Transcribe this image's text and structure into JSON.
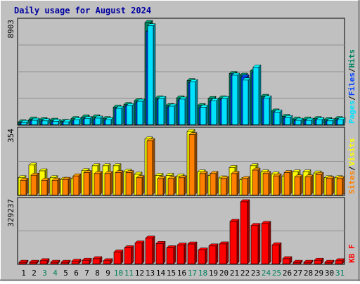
{
  "title": "Daily usage for August 2024",
  "colors": {
    "outer_bg": "#C0C0C0",
    "plot_bg": "#C0C0C0",
    "gridline": "#909090",
    "title": "#0000A0",
    "hits": "#00805C",
    "files": "#0040FF",
    "pages": "#00E0FF",
    "visits": "#FFFF00",
    "sites": "#FF8000",
    "kbytes": "#FF0000",
    "weekend_label": "#00805C",
    "weekday_label": "#000000"
  },
  "chart_data": [
    {
      "type": "bar",
      "title": "Daily usage for August 2024",
      "ylabel_parts": [
        "Pages",
        "Files",
        "Hits"
      ],
      "ymax_label": "8903",
      "ylim": [
        0,
        8903
      ],
      "categories": [
        "1",
        "2",
        "3",
        "4",
        "5",
        "6",
        "7",
        "8",
        "9",
        "10",
        "11",
        "12",
        "13",
        "14",
        "15",
        "16",
        "17",
        "18",
        "19",
        "20",
        "21",
        "22",
        "23",
        "24",
        "25",
        "26",
        "27",
        "28",
        "29",
        "30",
        "31"
      ],
      "series": [
        {
          "name": "Hits",
          "values": [
            282,
            518,
            471,
            424,
            330,
            565,
            706,
            706,
            565,
            1554,
            1789,
            2119,
            8903,
            2354,
            1695,
            2354,
            3862,
            1695,
            2307,
            2354,
            4472,
            4331,
            4708,
            2495,
            1224,
            753,
            518,
            518,
            565,
            471,
            565
          ]
        },
        {
          "name": "Files",
          "values": [
            188,
            377,
            330,
            282,
            235,
            377,
            518,
            518,
            424,
            1413,
            1648,
            1978,
            8150,
            2213,
            1554,
            2166,
            3673,
            1507,
            2072,
            2213,
            4331,
            4190,
            4566,
            2307,
            1083,
            612,
            377,
            377,
            424,
            330,
            424
          ]
        },
        {
          "name": "Pages",
          "values": [
            235,
            424,
            377,
            330,
            282,
            471,
            565,
            612,
            471,
            1460,
            1695,
            2072,
            8620,
            2307,
            1648,
            2260,
            3767,
            1554,
            2119,
            2307,
            4331,
            3909,
            5038,
            2354,
            1130,
            659,
            424,
            424,
            471,
            377,
            471
          ]
        }
      ]
    },
    {
      "type": "bar",
      "ylabel_parts": [
        "Sites",
        "Visits"
      ],
      "ymax_label": "354",
      "ylim": [
        0,
        354
      ],
      "categories": [
        "1",
        "2",
        "3",
        "4",
        "5",
        "6",
        "7",
        "8",
        "9",
        "10",
        "11",
        "12",
        "13",
        "14",
        "15",
        "16",
        "17",
        "18",
        "19",
        "20",
        "21",
        "22",
        "23",
        "24",
        "25",
        "26",
        "27",
        "28",
        "29",
        "30",
        "31"
      ],
      "series": [
        {
          "name": "Visits",
          "values": [
            98,
            168,
            136,
            98,
            89,
            93,
            137,
            164,
            164,
            164,
            133,
            117,
            312,
            111,
            111,
            107,
            354,
            130,
            111,
            97,
            154,
            88,
            164,
            130,
            118,
            107,
            130,
            130,
            124,
            98,
            98
          ]
        },
        {
          "name": "Sites",
          "values": [
            84,
            112,
            84,
            84,
            89,
            108,
            126,
            121,
            121,
            126,
            126,
            98,
            303,
            93,
            93,
            98,
            336,
            121,
            121,
            93,
            121,
            93,
            140,
            121,
            108,
            126,
            102,
            102,
            116,
            93,
            93
          ]
        }
      ]
    },
    {
      "type": "bar",
      "ylabel_parts": [
        "KB",
        "F"
      ],
      "ymax_label": "329237",
      "ylim": [
        0,
        329237
      ],
      "categories": [
        "1",
        "2",
        "3",
        "4",
        "5",
        "6",
        "7",
        "8",
        "9",
        "10",
        "11",
        "12",
        "13",
        "14",
        "15",
        "16",
        "17",
        "18",
        "19",
        "20",
        "21",
        "22",
        "23",
        "24",
        "25",
        "26",
        "27",
        "28",
        "29",
        "30",
        "31"
      ],
      "series": [
        {
          "name": "KB F",
          "values": [
            10750,
            10750,
            18810,
            10750,
            10750,
            16120,
            21500,
            29560,
            18810,
            64490,
            87000,
            112000,
            137600,
            109800,
            87000,
            101000,
            107000,
            75250,
            96740,
            107500,
            225700,
            329237,
            204200,
            215000,
            102200,
            29560,
            10750,
            10750,
            21500,
            10750,
            18810
          ]
        }
      ]
    }
  ],
  "xaxis": {
    "labels": [
      "1",
      "2",
      "3",
      "4",
      "5",
      "6",
      "7",
      "8",
      "9",
      "10",
      "11",
      "12",
      "13",
      "14",
      "15",
      "16",
      "17",
      "18",
      "19",
      "20",
      "21",
      "22",
      "23",
      "24",
      "25",
      "26",
      "27",
      "28",
      "29",
      "30",
      "31"
    ],
    "weekend_days": [
      "3",
      "4",
      "10",
      "11",
      "17",
      "18",
      "24",
      "25",
      "31"
    ]
  }
}
